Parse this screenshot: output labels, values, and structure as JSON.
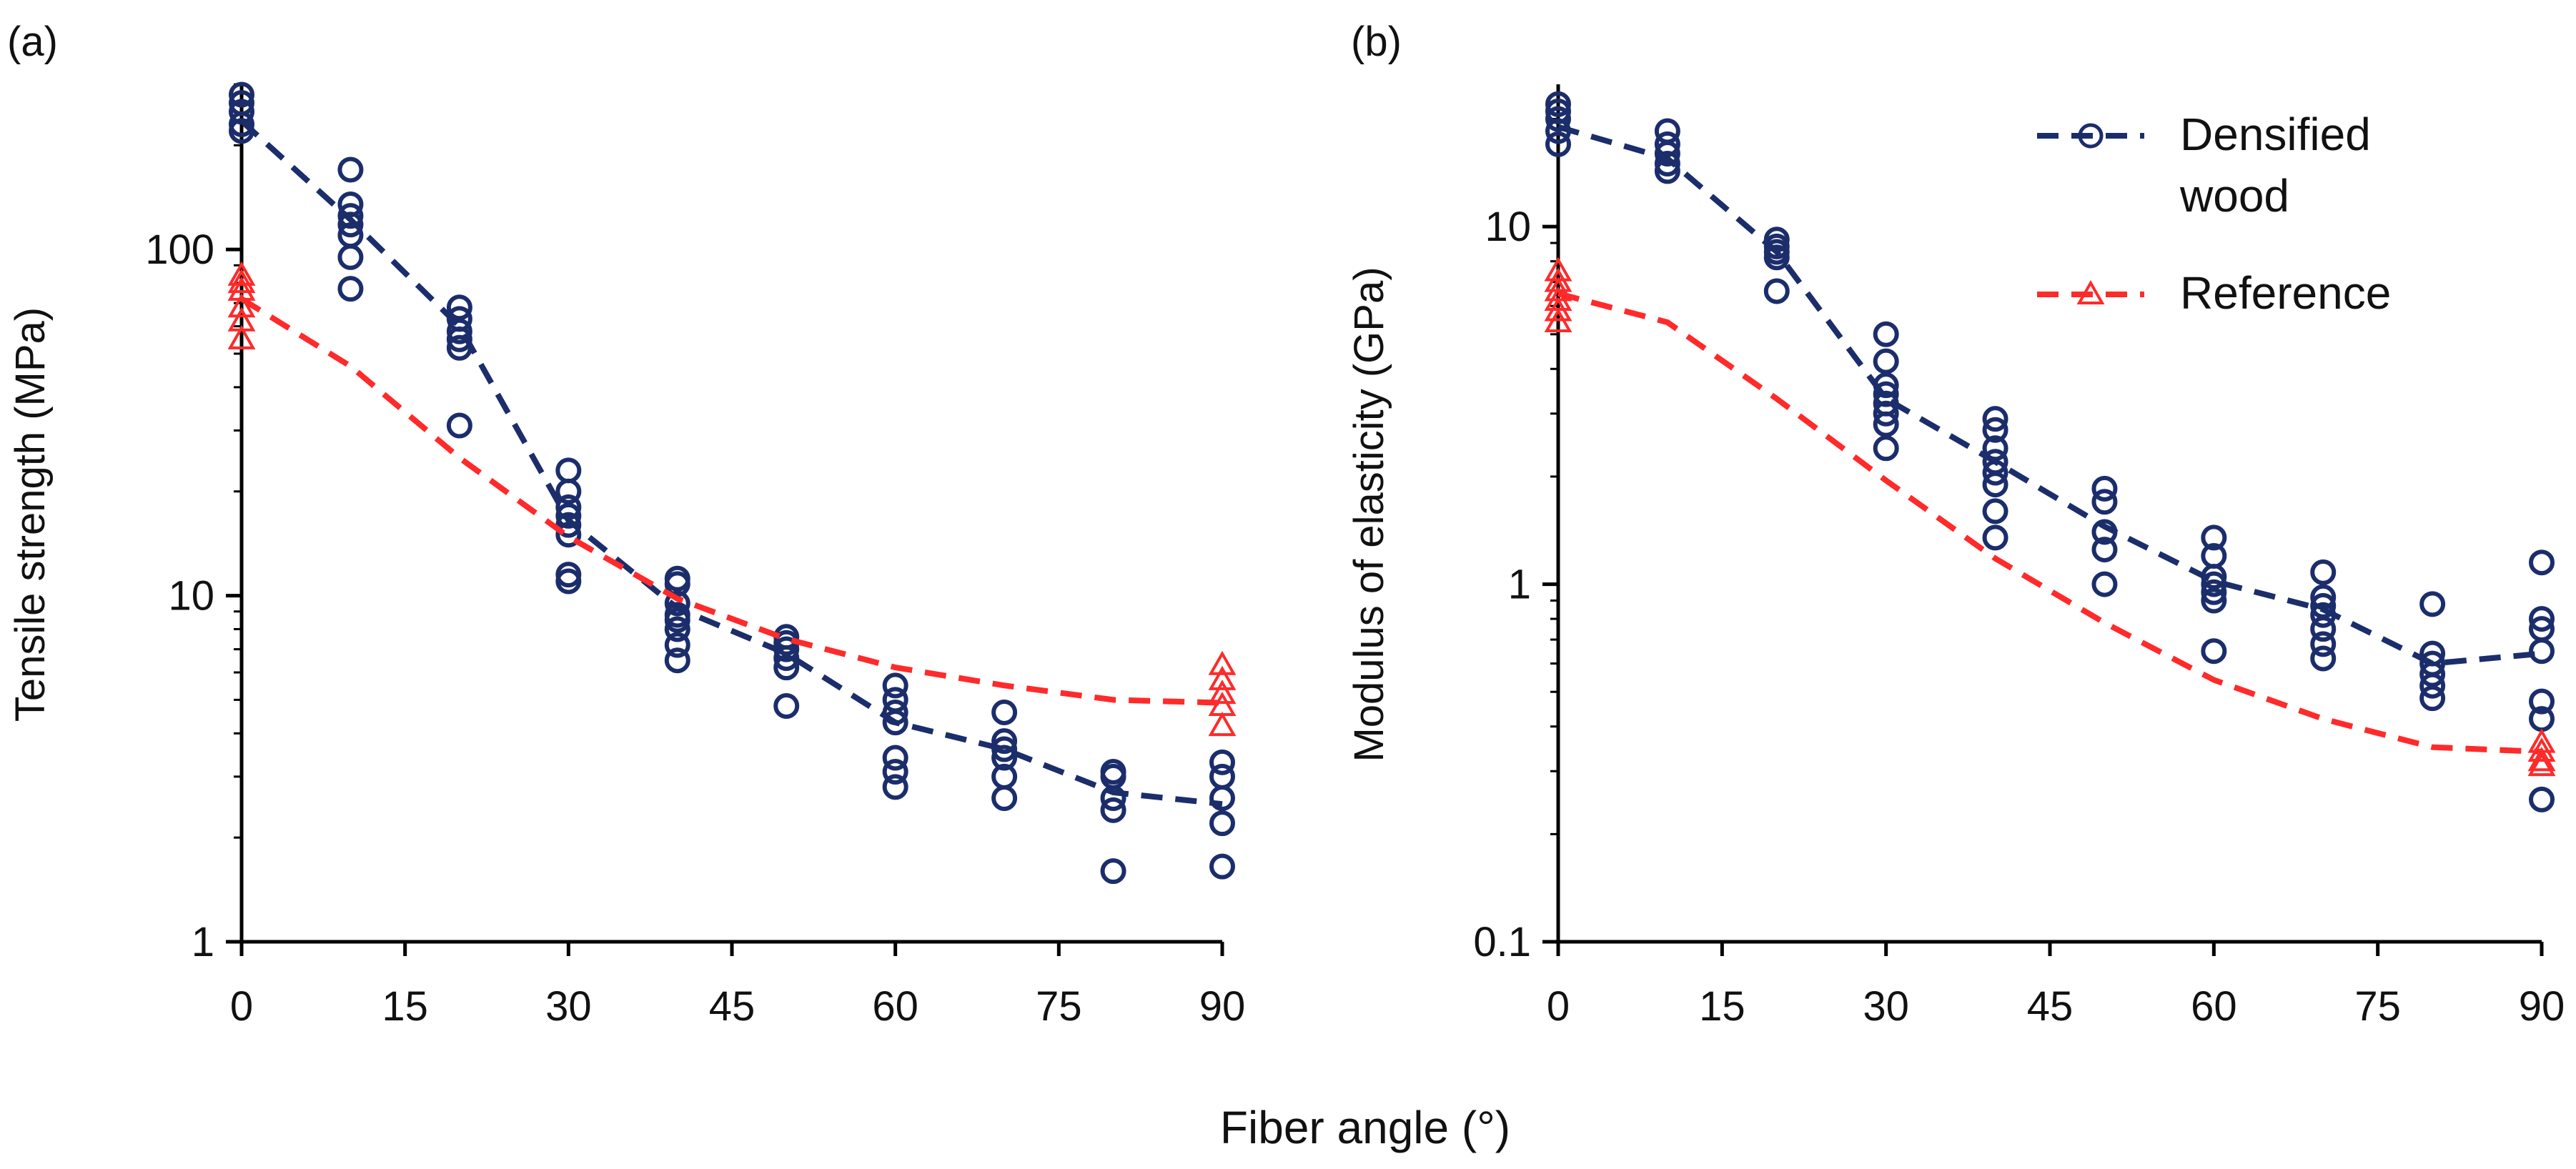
{
  "shared_xlabel": "Fiber angle (°)",
  "colors": {
    "densified": "#1b2d6b",
    "reference": "#ff2a2a",
    "axis": "#000000"
  },
  "chart_data": [
    {
      "panel": "(a)",
      "type": "scatter",
      "yscale": "log",
      "xlabel": "Fiber angle (°)",
      "ylabel": "Tensile strength (MPa)",
      "xlim": [
        0,
        90
      ],
      "ylim": [
        1,
        300
      ],
      "xticks": [
        0,
        15,
        30,
        45,
        60,
        75,
        90
      ],
      "yticks": [
        {
          "v": 1,
          "label": "1"
        },
        {
          "v": 10,
          "label": "10"
        },
        {
          "v": 100,
          "label": "100"
        }
      ],
      "series": [
        {
          "name": "Densified wood",
          "marker": "circle",
          "points": [
            [
              0,
              280
            ],
            [
              0,
              265
            ],
            [
              0,
              250
            ],
            [
              0,
              230
            ],
            [
              0,
              220
            ],
            [
              10,
              170
            ],
            [
              10,
              135
            ],
            [
              10,
              125
            ],
            [
              10,
              118
            ],
            [
              10,
              110
            ],
            [
              10,
              95
            ],
            [
              10,
              77
            ],
            [
              20,
              68
            ],
            [
              20,
              63
            ],
            [
              20,
              58
            ],
            [
              20,
              55
            ],
            [
              20,
              52
            ],
            [
              20,
              31
            ],
            [
              30,
              23
            ],
            [
              30,
              20
            ],
            [
              30,
              18
            ],
            [
              30,
              17
            ],
            [
              30,
              16
            ],
            [
              30,
              15
            ],
            [
              30,
              11.5
            ],
            [
              30,
              11
            ],
            [
              40,
              11.2
            ],
            [
              40,
              10.8
            ],
            [
              40,
              9.5
            ],
            [
              40,
              8.8
            ],
            [
              40,
              8.5
            ],
            [
              40,
              8
            ],
            [
              40,
              7.2
            ],
            [
              40,
              6.5
            ],
            [
              50,
              7.6
            ],
            [
              50,
              7.3
            ],
            [
              50,
              7
            ],
            [
              50,
              6.6
            ],
            [
              50,
              6.2
            ],
            [
              50,
              4.8
            ],
            [
              60,
              5.5
            ],
            [
              60,
              5
            ],
            [
              60,
              4.6
            ],
            [
              60,
              4.3
            ],
            [
              60,
              3.4
            ],
            [
              60,
              3.1
            ],
            [
              60,
              2.8
            ],
            [
              70,
              4.6
            ],
            [
              70,
              3.8
            ],
            [
              70,
              3.6
            ],
            [
              70,
              3.4
            ],
            [
              70,
              3
            ],
            [
              70,
              2.6
            ],
            [
              80,
              3.1
            ],
            [
              80,
              3
            ],
            [
              80,
              2.6
            ],
            [
              80,
              2.4
            ],
            [
              80,
              1.6
            ],
            [
              90,
              3.3
            ],
            [
              90,
              3
            ],
            [
              90,
              2.6
            ],
            [
              90,
              2.2
            ],
            [
              90,
              1.65
            ]
          ],
          "trend": [
            [
              0,
              235
            ],
            [
              10,
              122
            ],
            [
              20,
              60
            ],
            [
              30,
              16.5
            ],
            [
              40,
              9.2
            ],
            [
              50,
              6.8
            ],
            [
              60,
              4.3
            ],
            [
              70,
              3.6
            ],
            [
              80,
              2.7
            ],
            [
              90,
              2.5
            ]
          ]
        },
        {
          "name": "Reference",
          "marker": "triangle",
          "points": [
            [
              0,
              84
            ],
            [
              0,
              80
            ],
            [
              0,
              76
            ],
            [
              0,
              68
            ],
            [
              0,
              62
            ],
            [
              0,
              55
            ],
            [
              90,
              6.3
            ],
            [
              90,
              5.7
            ],
            [
              90,
              5.2
            ],
            [
              90,
              4.8
            ],
            [
              90,
              4.2
            ]
          ],
          "trend": [
            [
              0,
              72
            ],
            [
              10,
              46
            ],
            [
              20,
              25
            ],
            [
              30,
              14.8
            ],
            [
              40,
              9.8
            ],
            [
              50,
              7.5
            ],
            [
              60,
              6.2
            ],
            [
              70,
              5.5
            ],
            [
              80,
              5
            ],
            [
              90,
              4.9
            ]
          ]
        }
      ]
    },
    {
      "panel": "(b)",
      "type": "scatter",
      "yscale": "log",
      "xlabel": "Fiber angle (°)",
      "ylabel": "Modulus of elasticity (GPa)",
      "xlim": [
        0,
        90
      ],
      "ylim": [
        0.1,
        25
      ],
      "xticks": [
        0,
        15,
        30,
        45,
        60,
        75,
        90
      ],
      "yticks": [
        {
          "v": 0.1,
          "label": "0.1"
        },
        {
          "v": 1,
          "label": "1"
        },
        {
          "v": 10,
          "label": "10"
        }
      ],
      "legend": {
        "placement": "top-right",
        "entries": [
          "Densified",
          "wood",
          "Reference"
        ]
      },
      "series": [
        {
          "name": "Densified wood",
          "marker": "circle",
          "points": [
            [
              0,
              22
            ],
            [
              0,
              21
            ],
            [
              0,
              20
            ],
            [
              0,
              18.5
            ],
            [
              0,
              17
            ],
            [
              10,
              18.5
            ],
            [
              10,
              17
            ],
            [
              10,
              16
            ],
            [
              10,
              15
            ],
            [
              10,
              14.3
            ],
            [
              20,
              9.2
            ],
            [
              20,
              8.8
            ],
            [
              20,
              8.5
            ],
            [
              20,
              8.2
            ],
            [
              20,
              6.6
            ],
            [
              30,
              5
            ],
            [
              30,
              4.2
            ],
            [
              30,
              3.6
            ],
            [
              30,
              3.4
            ],
            [
              30,
              3.2
            ],
            [
              30,
              3
            ],
            [
              30,
              2.8
            ],
            [
              30,
              2.4
            ],
            [
              40,
              2.9
            ],
            [
              40,
              2.7
            ],
            [
              40,
              2.4
            ],
            [
              40,
              2.2
            ],
            [
              40,
              2.05
            ],
            [
              40,
              1.9
            ],
            [
              40,
              1.6
            ],
            [
              40,
              1.35
            ],
            [
              50,
              1.85
            ],
            [
              50,
              1.7
            ],
            [
              50,
              1.4
            ],
            [
              50,
              1.25
            ],
            [
              50,
              1
            ],
            [
              60,
              1.35
            ],
            [
              60,
              1.2
            ],
            [
              60,
              1.05
            ],
            [
              60,
              1
            ],
            [
              60,
              0.95
            ],
            [
              60,
              0.9
            ],
            [
              60,
              0.65
            ],
            [
              70,
              1.08
            ],
            [
              70,
              0.92
            ],
            [
              70,
              0.87
            ],
            [
              70,
              0.82
            ],
            [
              70,
              0.75
            ],
            [
              70,
              0.68
            ],
            [
              70,
              0.62
            ],
            [
              80,
              0.88
            ],
            [
              80,
              0.64
            ],
            [
              80,
              0.6
            ],
            [
              80,
              0.56
            ],
            [
              80,
              0.52
            ],
            [
              80,
              0.48
            ],
            [
              90,
              1.15
            ],
            [
              90,
              0.8
            ],
            [
              90,
              0.75
            ],
            [
              90,
              0.65
            ],
            [
              90,
              0.47
            ],
            [
              90,
              0.42
            ],
            [
              90,
              0.25
            ]
          ],
          "trend": [
            [
              0,
              19
            ],
            [
              10,
              15.5
            ],
            [
              20,
              8.5
            ],
            [
              30,
              3.3
            ],
            [
              40,
              2.2
            ],
            [
              50,
              1.45
            ],
            [
              60,
              1.02
            ],
            [
              70,
              0.85
            ],
            [
              80,
              0.6
            ],
            [
              90,
              0.64
            ]
          ]
        },
        {
          "name": "Reference",
          "marker": "triangle",
          "points": [
            [
              0,
              7.5
            ],
            [
              0,
              7
            ],
            [
              0,
              6.6
            ],
            [
              0,
              6.2
            ],
            [
              0,
              5.8
            ],
            [
              0,
              5.4
            ],
            [
              90,
              0.36
            ],
            [
              90,
              0.34
            ],
            [
              90,
              0.32
            ],
            [
              90,
              0.31
            ]
          ],
          "trend": [
            [
              0,
              6.5
            ],
            [
              10,
              5.4
            ],
            [
              20,
              3.3
            ],
            [
              30,
              1.95
            ],
            [
              40,
              1.18
            ],
            [
              50,
              0.78
            ],
            [
              60,
              0.54
            ],
            [
              70,
              0.42
            ],
            [
              80,
              0.35
            ],
            [
              90,
              0.34
            ]
          ]
        }
      ]
    }
  ]
}
